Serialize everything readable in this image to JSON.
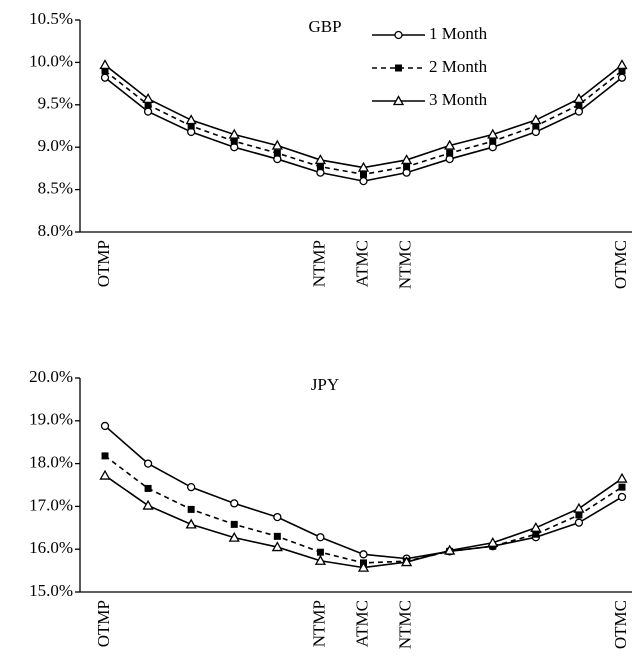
{
  "chart_data": [
    {
      "type": "line",
      "title": "GBP",
      "categories": [
        "OTMP",
        null,
        null,
        null,
        null,
        "NTMP",
        "ATMC",
        "NTMC",
        null,
        null,
        null,
        null,
        "OTMC"
      ],
      "series": [
        {
          "name": "1 Month",
          "color": "#000000",
          "marker": "circle",
          "dash": false,
          "values": [
            9.82,
            9.42,
            9.18,
            9.0,
            8.86,
            8.7,
            8.6,
            8.7,
            8.86,
            9.0,
            9.18,
            9.42,
            9.82
          ]
        },
        {
          "name": "2 Month",
          "color": "#000000",
          "marker": "square",
          "dash": true,
          "values": [
            9.9,
            9.5,
            9.25,
            9.07,
            8.93,
            8.77,
            8.68,
            8.77,
            8.93,
            9.07,
            9.25,
            9.5,
            9.9
          ]
        },
        {
          "name": "3 Month",
          "color": "#000000",
          "marker": "triangle",
          "dash": false,
          "values": [
            9.97,
            9.57,
            9.32,
            9.15,
            9.02,
            8.85,
            8.76,
            8.85,
            9.02,
            9.15,
            9.32,
            9.57,
            9.97
          ]
        }
      ],
      "ylim": [
        8.0,
        10.5
      ],
      "yticks": [
        {
          "value": 8.0,
          "label": "8.0%"
        },
        {
          "value": 8.5,
          "label": "8.5%"
        },
        {
          "value": 9.0,
          "label": "9.0%"
        },
        {
          "value": 9.5,
          "label": "9.5%"
        },
        {
          "value": 10.0,
          "label": "10.0%"
        },
        {
          "value": 10.5,
          "label": "10.5%"
        }
      ],
      "legend": "top right"
    },
    {
      "type": "line",
      "title": "JPY",
      "categories": [
        "OTMP",
        null,
        null,
        null,
        null,
        "NTMP",
        "ATMC",
        "NTMC",
        null,
        null,
        null,
        null,
        "OTMC"
      ],
      "series": [
        {
          "color": "#000000",
          "marker": "circle",
          "dash": false,
          "values": [
            18.88,
            18.0,
            17.45,
            17.07,
            16.75,
            16.28,
            15.88,
            15.78,
            15.95,
            16.07,
            16.28,
            16.62,
            17.22
          ]
        },
        {
          "color": "#000000",
          "marker": "square",
          "dash": true,
          "values": [
            18.18,
            17.42,
            16.93,
            16.58,
            16.3,
            15.93,
            15.68,
            15.72,
            15.95,
            16.07,
            16.35,
            16.8,
            17.45
          ]
        },
        {
          "color": "#000000",
          "marker": "triangle",
          "dash": false,
          "values": [
            17.72,
            17.02,
            16.58,
            16.27,
            16.05,
            15.73,
            15.57,
            15.7,
            15.97,
            16.15,
            16.5,
            16.95,
            17.65
          ]
        }
      ],
      "ylim": [
        15.0,
        20.0
      ],
      "yticks": [
        {
          "value": 15.0,
          "label": "15.0%"
        },
        {
          "value": 16.0,
          "label": "16.0%"
        },
        {
          "value": 17.0,
          "label": "17.0%"
        },
        {
          "value": 18.0,
          "label": "18.0%"
        },
        {
          "value": 19.0,
          "label": "19.0%"
        },
        {
          "value": 20.0,
          "label": "20.0%"
        }
      ]
    }
  ]
}
